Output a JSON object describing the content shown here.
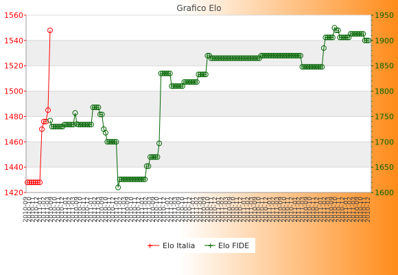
{
  "chart_data": {
    "type": "line",
    "title": "Grafico Elo",
    "grid": true,
    "legend_position": "bottom",
    "y_left": {
      "min": 1420,
      "max": 1560,
      "ticks": [
        1420,
        1440,
        1460,
        1480,
        1500,
        1520,
        1540,
        1560
      ]
    },
    "y_right": {
      "min": 1600,
      "max": 1950,
      "ticks": [
        1600,
        1650,
        1700,
        1750,
        1800,
        1850,
        1900,
        1950
      ]
    },
    "x_tick_labels": [
      "2010-09",
      "2010-10",
      "2010-11",
      "2010-12",
      "2011-01",
      "2011-02",
      "2011-03"
    ],
    "x_tick_labels_note": "dense rotated date labels, largely illegible",
    "colors": {
      "elo_italia": "#ff0000",
      "elo_fide": "#006400",
      "band_gray": "#eeeeee",
      "band_white": "#ffffff",
      "grid": "#d8d8d8",
      "title": "#444444",
      "axis_left": "#ff0000",
      "axis_right": "#006400"
    },
    "series": [
      {
        "name": "Elo Italia",
        "axis": "left",
        "values": [
          1428,
          1428,
          1428,
          1428,
          1428,
          1428,
          1428,
          1470,
          1476,
          1476,
          1485,
          1548
        ]
      },
      {
        "name": "Elo FIDE",
        "axis": "right",
        "values": [
          1742,
          1730,
          1730,
          1730,
          1730,
          1730,
          1730,
          1730,
          1734,
          1734,
          1734,
          1734,
          1734,
          1734,
          1757,
          1735,
          1734,
          1734,
          1734,
          1734,
          1734,
          1734,
          1734,
          1734,
          1768,
          1768,
          1768,
          1768,
          1754,
          1754,
          1725,
          1718,
          1700,
          1700,
          1700,
          1700,
          1700,
          1700,
          1610,
          1626,
          1626,
          1626,
          1626,
          1626,
          1626,
          1626,
          1626,
          1626,
          1626,
          1626,
          1626,
          1626,
          1626,
          1626,
          1652,
          1652,
          1670,
          1670,
          1670,
          1670,
          1670,
          1697,
          1835,
          1835,
          1835,
          1835,
          1835,
          1835,
          1810,
          1810,
          1810,
          1810,
          1810,
          1810,
          1810,
          1818,
          1818,
          1818,
          1818,
          1818,
          1818,
          1818,
          1818,
          1833,
          1833,
          1833,
          1833,
          1833,
          1870,
          1870,
          1865,
          1865,
          1865,
          1865,
          1865,
          1865,
          1865,
          1865,
          1865,
          1865,
          1865,
          1865,
          1865,
          1865,
          1865,
          1865,
          1865,
          1865,
          1865,
          1865,
          1865,
          1865,
          1865,
          1865,
          1865,
          1865,
          1865,
          1865,
          1870,
          1870,
          1870,
          1870,
          1870,
          1870,
          1870,
          1870,
          1870,
          1870,
          1870,
          1870,
          1870,
          1870,
          1870,
          1870,
          1870,
          1870,
          1870,
          1870,
          1870,
          1870,
          1870,
          1848,
          1848,
          1848,
          1848,
          1848,
          1848,
          1848,
          1848,
          1848,
          1848,
          1848,
          1848,
          1885,
          1906,
          1906,
          1906,
          1906,
          1906,
          1925,
          1920,
          1920,
          1906,
          1906,
          1906,
          1906,
          1906,
          1906,
          1913,
          1913,
          1913,
          1913,
          1913,
          1913,
          1913,
          1913,
          1900,
          1900,
          1900
        ]
      }
    ]
  }
}
